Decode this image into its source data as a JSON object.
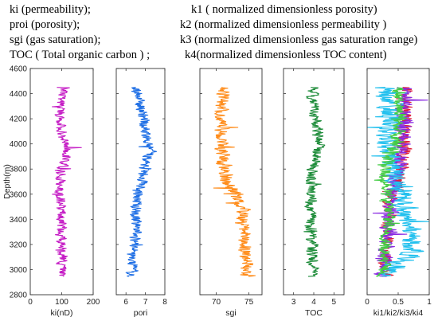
{
  "legend_lines": [
    {
      "left": "ki (permeability);",
      "right": "k1 ( normalized dimensionless porosity)"
    },
    {
      "left": "proi (porosity);",
      "right": "k2 (normalized dimensionless permeability )"
    },
    {
      "left": "sgi (gas saturation);",
      "right": "k3 (normalized dimensionless gas saturation range)"
    },
    {
      "left": "TOC ( Total organic carbon ) ;",
      "right": "k4(normalized dimensionless TOC content)"
    }
  ],
  "chart_data": {
    "type": "line",
    "ylabel": "Depth(m)",
    "ylim": [
      2800,
      4600
    ],
    "yticks": [
      2800,
      3000,
      3200,
      3400,
      3600,
      3800,
      4000,
      4200,
      4400,
      4600
    ],
    "grid": false,
    "depth_range": [
      2945,
      4450
    ],
    "tracks": [
      {
        "xlabel": "ki(nD)",
        "xlim": [
          0,
          200
        ],
        "xticks": [
          0,
          100,
          200
        ],
        "series": [
          {
            "color": "#C51DC5",
            "profile": [
              [
                2945,
                100
              ],
              [
                3100,
                105
              ],
              [
                3300,
                95
              ],
              [
                3500,
                100
              ],
              [
                3700,
                92
              ],
              [
                3850,
                108
              ],
              [
                3950,
                115
              ],
              [
                4100,
                98
              ],
              [
                4300,
                100
              ],
              [
                4450,
                110
              ]
            ],
            "spread": 18
          }
        ]
      },
      {
        "xlabel": "pori",
        "xlim": [
          5.5,
          8
        ],
        "xticks": [
          6,
          7,
          8
        ],
        "series": [
          {
            "color": "#1F6FE5",
            "profile": [
              [
                2945,
                6.3
              ],
              [
                3100,
                6.35
              ],
              [
                3300,
                6.5
              ],
              [
                3500,
                6.55
              ],
              [
                3700,
                6.8
              ],
              [
                3850,
                7.0
              ],
              [
                3950,
                7.3
              ],
              [
                4050,
                7.1
              ],
              [
                4200,
                6.9
              ],
              [
                4350,
                6.7
              ],
              [
                4450,
                6.5
              ]
            ],
            "spread": 0.3
          }
        ]
      },
      {
        "xlabel": "sgi",
        "xlim": [
          67.5,
          77
        ],
        "xticks": [
          70,
          75
        ],
        "series": [
          {
            "color": "#FF8C1A",
            "profile": [
              [
                2945,
                74.8
              ],
              [
                3100,
                74.5
              ],
              [
                3300,
                74.2
              ],
              [
                3500,
                74.0
              ],
              [
                3600,
                73.0
              ],
              [
                3700,
                71.5
              ],
              [
                3900,
                71.0
              ],
              [
                4100,
                70.8
              ],
              [
                4300,
                70.8
              ],
              [
                4450,
                71.0
              ]
            ],
            "spread": 1.2
          }
        ]
      },
      {
        "xlabel": "TOC",
        "xlim": [
          2.5,
          5.5
        ],
        "xticks": [
          3,
          4,
          5
        ],
        "series": [
          {
            "color": "#1E8C3A",
            "profile": [
              [
                2945,
                3.95
              ],
              [
                3200,
                3.9
              ],
              [
                3500,
                3.85
              ],
              [
                3800,
                3.9
              ],
              [
                3900,
                4.1
              ],
              [
                4000,
                4.3
              ],
              [
                4150,
                4.1
              ],
              [
                4300,
                4.0
              ],
              [
                4450,
                3.9
              ]
            ],
            "spread": 0.3
          }
        ]
      },
      {
        "xlabel": "ki1/ki2/ki3/ki4",
        "xlim": [
          0,
          1
        ],
        "xticks": [
          0,
          0.5,
          1
        ],
        "series": [
          {
            "color": "#E0203A",
            "profile": [
              [
                2945,
                0.3
              ],
              [
                3200,
                0.3
              ],
              [
                3500,
                0.35
              ],
              [
                3800,
                0.55
              ],
              [
                4000,
                0.6
              ],
              [
                4200,
                0.6
              ],
              [
                4450,
                0.65
              ]
            ],
            "spread": 0.12
          },
          {
            "color": "#8A2BE2",
            "profile": [
              [
                2945,
                0.25
              ],
              [
                3200,
                0.3
              ],
              [
                3500,
                0.4
              ],
              [
                3800,
                0.5
              ],
              [
                4000,
                0.55
              ],
              [
                4200,
                0.6
              ],
              [
                4450,
                0.6
              ]
            ],
            "spread": 0.15
          },
          {
            "color": "#22C0EE",
            "profile": [
              [
                2945,
                0.2
              ],
              [
                3100,
                0.7
              ],
              [
                3300,
                0.75
              ],
              [
                3550,
                0.6
              ],
              [
                3750,
                0.45
              ],
              [
                4000,
                0.3
              ],
              [
                4200,
                0.4
              ],
              [
                4450,
                0.3
              ]
            ],
            "spread": 0.2
          },
          {
            "color": "#44CC44",
            "profile": [
              [
                2945,
                0.25
              ],
              [
                3200,
                0.3
              ],
              [
                3500,
                0.35
              ],
              [
                3800,
                0.3
              ],
              [
                4000,
                0.45
              ],
              [
                4200,
                0.55
              ],
              [
                4450,
                0.5
              ]
            ],
            "spread": 0.12
          }
        ]
      }
    ]
  }
}
